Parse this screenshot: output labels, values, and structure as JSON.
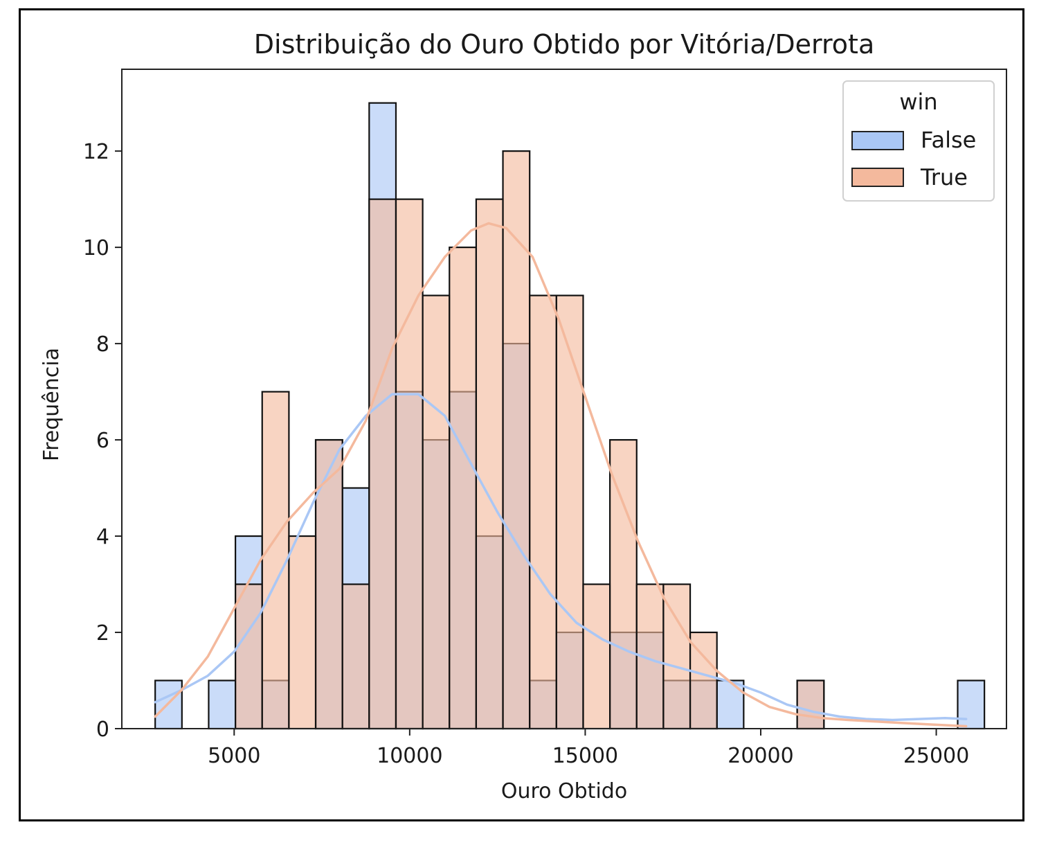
{
  "chart_data": {
    "type": "bar",
    "title": "Distribuição do Ouro Obtido por Vitória/Derrota",
    "xlabel": "Ouro Obtido",
    "ylabel": "Frequência",
    "xlim": [
      1800,
      27000
    ],
    "ylim": [
      0,
      13.7
    ],
    "xticks": [
      5000,
      10000,
      15000,
      20000,
      25000
    ],
    "yticks": [
      0,
      2,
      4,
      6,
      8,
      10,
      12
    ],
    "bin_start": 2750,
    "bin_width": 762,
    "legend": {
      "title": "win",
      "placement": "top-right"
    },
    "series": [
      {
        "name": "False",
        "color": "#aac7f5",
        "values": [
          1,
          0,
          1,
          4,
          1,
          0,
          6,
          5,
          13,
          7,
          6,
          7,
          4,
          8,
          1,
          2,
          0,
          2,
          2,
          1,
          1,
          1,
          0,
          0,
          1,
          0,
          0,
          0,
          0,
          0,
          1
        ],
        "kde": [
          [
            2750,
            0.55
          ],
          [
            3500,
            0.8
          ],
          [
            4250,
            1.1
          ],
          [
            5000,
            1.6
          ],
          [
            5750,
            2.4
          ],
          [
            6500,
            3.5
          ],
          [
            7250,
            4.7
          ],
          [
            8000,
            5.8
          ],
          [
            8750,
            6.5
          ],
          [
            9500,
            6.95
          ],
          [
            10250,
            6.95
          ],
          [
            11000,
            6.5
          ],
          [
            11750,
            5.5
          ],
          [
            12500,
            4.5
          ],
          [
            13250,
            3.6
          ],
          [
            14000,
            2.8
          ],
          [
            14750,
            2.2
          ],
          [
            15500,
            1.85
          ],
          [
            16250,
            1.6
          ],
          [
            17000,
            1.4
          ],
          [
            17750,
            1.25
          ],
          [
            18500,
            1.1
          ],
          [
            19250,
            0.95
          ],
          [
            20000,
            0.75
          ],
          [
            20750,
            0.5
          ],
          [
            21500,
            0.35
          ],
          [
            22250,
            0.25
          ],
          [
            23000,
            0.2
          ],
          [
            23750,
            0.18
          ],
          [
            24500,
            0.2
          ],
          [
            25250,
            0.22
          ],
          [
            25850,
            0.2
          ]
        ]
      },
      {
        "name": "True",
        "color": "#f4b99d",
        "values": [
          0,
          0,
          0,
          3,
          7,
          4,
          6,
          3,
          11,
          11,
          9,
          10,
          11,
          12,
          9,
          9,
          3,
          6,
          3,
          3,
          2,
          0,
          0,
          0,
          1,
          0,
          0,
          0,
          0,
          0,
          0
        ],
        "kde": [
          [
            2750,
            0.25
          ],
          [
            3500,
            0.8
          ],
          [
            4250,
            1.5
          ],
          [
            5000,
            2.5
          ],
          [
            5750,
            3.5
          ],
          [
            6500,
            4.3
          ],
          [
            7250,
            4.9
          ],
          [
            8000,
            5.4
          ],
          [
            8750,
            6.4
          ],
          [
            9500,
            7.9
          ],
          [
            10250,
            9.0
          ],
          [
            11000,
            9.8
          ],
          [
            11750,
            10.35
          ],
          [
            12250,
            10.5
          ],
          [
            12750,
            10.4
          ],
          [
            13500,
            9.8
          ],
          [
            14250,
            8.5
          ],
          [
            15000,
            6.9
          ],
          [
            15750,
            5.3
          ],
          [
            16500,
            3.9
          ],
          [
            17250,
            2.7
          ],
          [
            18000,
            1.8
          ],
          [
            18750,
            1.2
          ],
          [
            19500,
            0.75
          ],
          [
            20250,
            0.45
          ],
          [
            21000,
            0.3
          ],
          [
            21750,
            0.22
          ],
          [
            22500,
            0.18
          ],
          [
            23250,
            0.15
          ],
          [
            24000,
            0.12
          ],
          [
            24750,
            0.09
          ],
          [
            25850,
            0.05
          ]
        ]
      }
    ]
  }
}
